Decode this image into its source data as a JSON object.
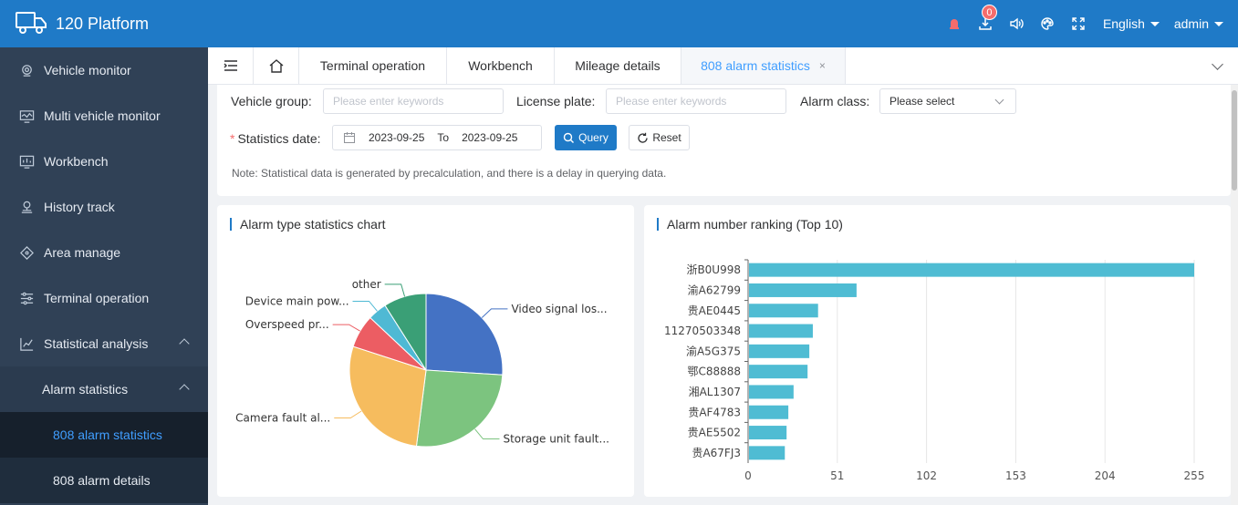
{
  "header": {
    "title": "120 Platform",
    "badge_count": "0",
    "language": "English",
    "user": "admin"
  },
  "sidebar": {
    "items": [
      {
        "label": "Vehicle monitor",
        "icon": "vehicle-monitor-icon"
      },
      {
        "label": "Multi vehicle monitor",
        "icon": "multi-monitor-icon"
      },
      {
        "label": "Workbench",
        "icon": "workbench-icon"
      },
      {
        "label": "History track",
        "icon": "history-track-icon"
      },
      {
        "label": "Area manage",
        "icon": "area-manage-icon"
      },
      {
        "label": "Terminal operation",
        "icon": "terminal-operation-icon"
      },
      {
        "label": "Statistical analysis",
        "icon": "statistical-analysis-icon"
      }
    ],
    "sub_item": "Alarm statistics",
    "sub_sub_items": [
      "808 alarm statistics",
      "808 alarm details"
    ]
  },
  "tabs": [
    {
      "label": "Terminal operation"
    },
    {
      "label": "Workbench"
    },
    {
      "label": "Mileage details"
    },
    {
      "label": "808 alarm statistics",
      "close": "×"
    }
  ],
  "filter": {
    "vehicle_group_label": "Vehicle group:",
    "vehicle_group_placeholder": "Please enter keywords",
    "license_plate_label": "License plate:",
    "license_plate_placeholder": "Please enter keywords",
    "alarm_class_label": "Alarm class:",
    "alarm_class_value": "Please select",
    "required_mark": "*",
    "statistics_date_label": "Statistics date:",
    "start_date": "2023-09-25",
    "to_label": "To",
    "end_date": "2023-09-25",
    "query_label": "Query",
    "reset_label": "Reset",
    "note": "Note: Statistical data is generated by precalculation, and there is a delay in querying data."
  },
  "pie_card": {
    "title": "Alarm type statistics chart"
  },
  "bar_card": {
    "title": "Alarm number ranking (Top 10)"
  },
  "chart_data": [
    {
      "type": "pie",
      "title": "Alarm type statistics chart",
      "slices": [
        {
          "label": "Video signal los...",
          "value": 26,
          "color": "#4472c4"
        },
        {
          "label": "Storage unit fault...",
          "value": 26,
          "color": "#7cc47f"
        },
        {
          "label": "Camera fault al...",
          "value": 28,
          "color": "#f6bc5e"
        },
        {
          "label": "Overspeed pr...",
          "value": 7,
          "color": "#ec5d63"
        },
        {
          "label": "Device main pow...",
          "value": 4,
          "color": "#4fb9d4"
        },
        {
          "label": "other",
          "value": 9,
          "color": "#3a9f76"
        }
      ]
    },
    {
      "type": "bar",
      "orientation": "horizontal",
      "title": "Alarm number ranking (Top 10)",
      "color": "#4fbcd3",
      "categories": [
        "浙B0U998",
        "渝A62799",
        "贵AE0445",
        "11270503348",
        "渝A5G375",
        "鄂C88888",
        "湘AL1307",
        "贵AF4783",
        "贵AE5502",
        "贵A67FJ3"
      ],
      "values": [
        255,
        62,
        40,
        37,
        35,
        34,
        26,
        23,
        22,
        21
      ],
      "xlim": [
        0,
        255
      ],
      "xticks": [
        0,
        51,
        102,
        153,
        204,
        255
      ],
      "grid": true
    }
  ]
}
